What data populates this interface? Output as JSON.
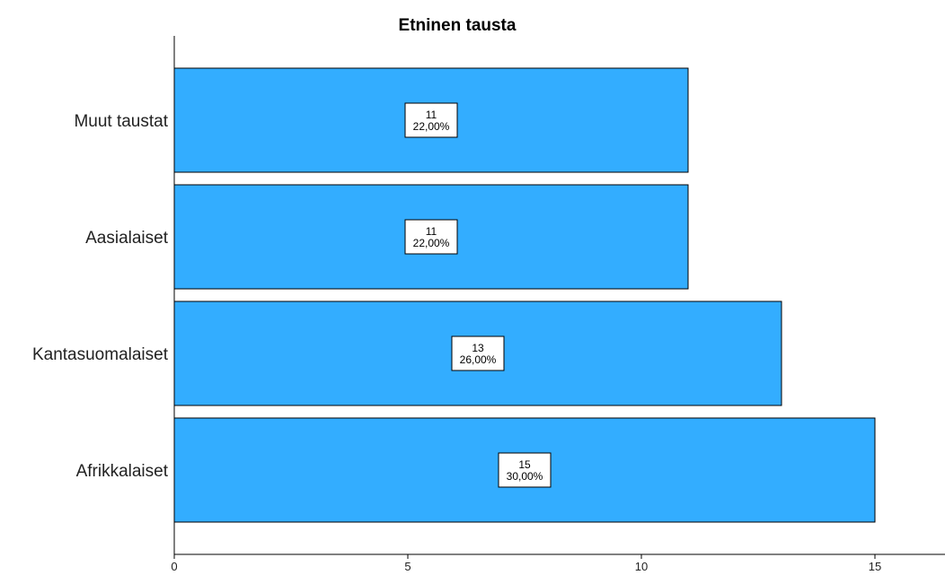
{
  "chart_data": {
    "type": "bar",
    "orientation": "horizontal",
    "title": "Etninen tausta",
    "xlabel": "",
    "ylabel": "",
    "categories": [
      "Muut taustat",
      "Aasialaiset",
      "Kantasuomalaiset",
      "Afrikkalaiset"
    ],
    "values": [
      11,
      11,
      13,
      15
    ],
    "data_labels": [
      {
        "count": "11",
        "percent": "22,00%"
      },
      {
        "count": "11",
        "percent": "22,00%"
      },
      {
        "count": "13",
        "percent": "26,00%"
      },
      {
        "count": "15",
        "percent": "30,00%"
      }
    ],
    "xlim": [
      0,
      16.5
    ],
    "x_ticks": [
      0,
      5,
      10,
      15
    ],
    "x_tick_labels": [
      "0",
      "5",
      "10",
      "15"
    ],
    "bar_color": "#33adff",
    "bar_edge_color": "#000000",
    "grid": false,
    "legend": "none"
  }
}
